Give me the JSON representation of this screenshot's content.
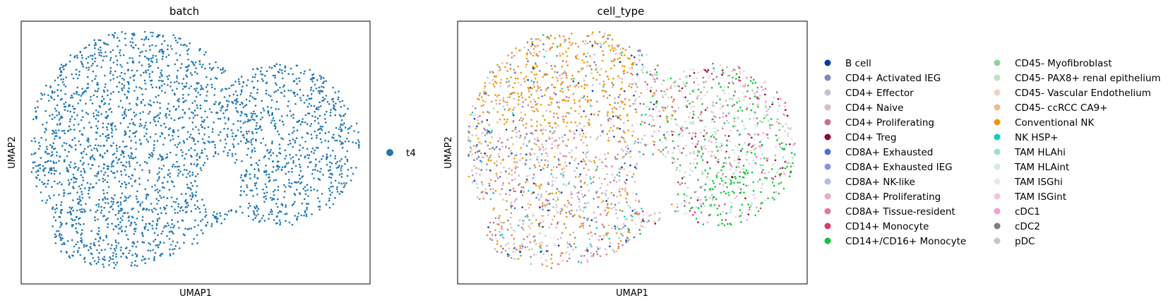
{
  "chart_data": [
    {
      "type": "scatter",
      "title": "batch",
      "xlabel": "UMAP1",
      "ylabel": "UMAP2",
      "legend_position": "right",
      "x_ticks": false,
      "y_ticks": false,
      "grid": false,
      "series": [
        {
          "name": "t4",
          "color": "#1f77b4"
        }
      ]
    },
    {
      "type": "scatter",
      "title": "cell_type",
      "xlabel": "UMAP1",
      "ylabel": "UMAP2",
      "legend_position": "right",
      "legend_columns": 2,
      "x_ticks": false,
      "y_ticks": false,
      "grid": false,
      "series": [
        {
          "name": "B cell",
          "color": "#023fa5"
        },
        {
          "name": "CD4+ Activated IEG",
          "color": "#7d87b9"
        },
        {
          "name": "CD4+ Effector",
          "color": "#bec1d4"
        },
        {
          "name": "CD4+ Naive",
          "color": "#d6bcc0"
        },
        {
          "name": "CD4+ Proliferating",
          "color": "#bb7784"
        },
        {
          "name": "CD4+ Treg",
          "color": "#8e063b"
        },
        {
          "name": "CD8A+ Exhausted",
          "color": "#4a6fe3"
        },
        {
          "name": "CD8A+ Exhausted IEG",
          "color": "#8595e1"
        },
        {
          "name": "CD8A+ NK-like",
          "color": "#b5bbe3"
        },
        {
          "name": "CD8A+ Proliferating",
          "color": "#e6afb9"
        },
        {
          "name": "CD8A+ Tissue-resident",
          "color": "#e07b91"
        },
        {
          "name": "CD14+ Monocyte",
          "color": "#d33f6a"
        },
        {
          "name": "CD14+/CD16+ Monocyte",
          "color": "#11c638"
        },
        {
          "name": "CD45- Myofibroblast",
          "color": "#8dd593"
        },
        {
          "name": "CD45- PAX8+ renal epithelium",
          "color": "#c6dec7"
        },
        {
          "name": "CD45- Vascular Endothelium",
          "color": "#ead3c6"
        },
        {
          "name": "CD45- ccRCC CA9+",
          "color": "#f0b98d"
        },
        {
          "name": "Conventional NK",
          "color": "#ef9708"
        },
        {
          "name": "NK HSP+",
          "color": "#0fcfc0"
        },
        {
          "name": "TAM HLAhi",
          "color": "#9cded6"
        },
        {
          "name": "TAM HLAint",
          "color": "#d5eae7"
        },
        {
          "name": "TAM ISGhi",
          "color": "#f3e1eb"
        },
        {
          "name": "TAM ISGint",
          "color": "#f6c4e1"
        },
        {
          "name": "cDC1",
          "color": "#f79cd4"
        },
        {
          "name": "cDC2",
          "color": "#7f7f7f"
        },
        {
          "name": "pDC",
          "color": "#c7c7c7"
        }
      ]
    }
  ]
}
